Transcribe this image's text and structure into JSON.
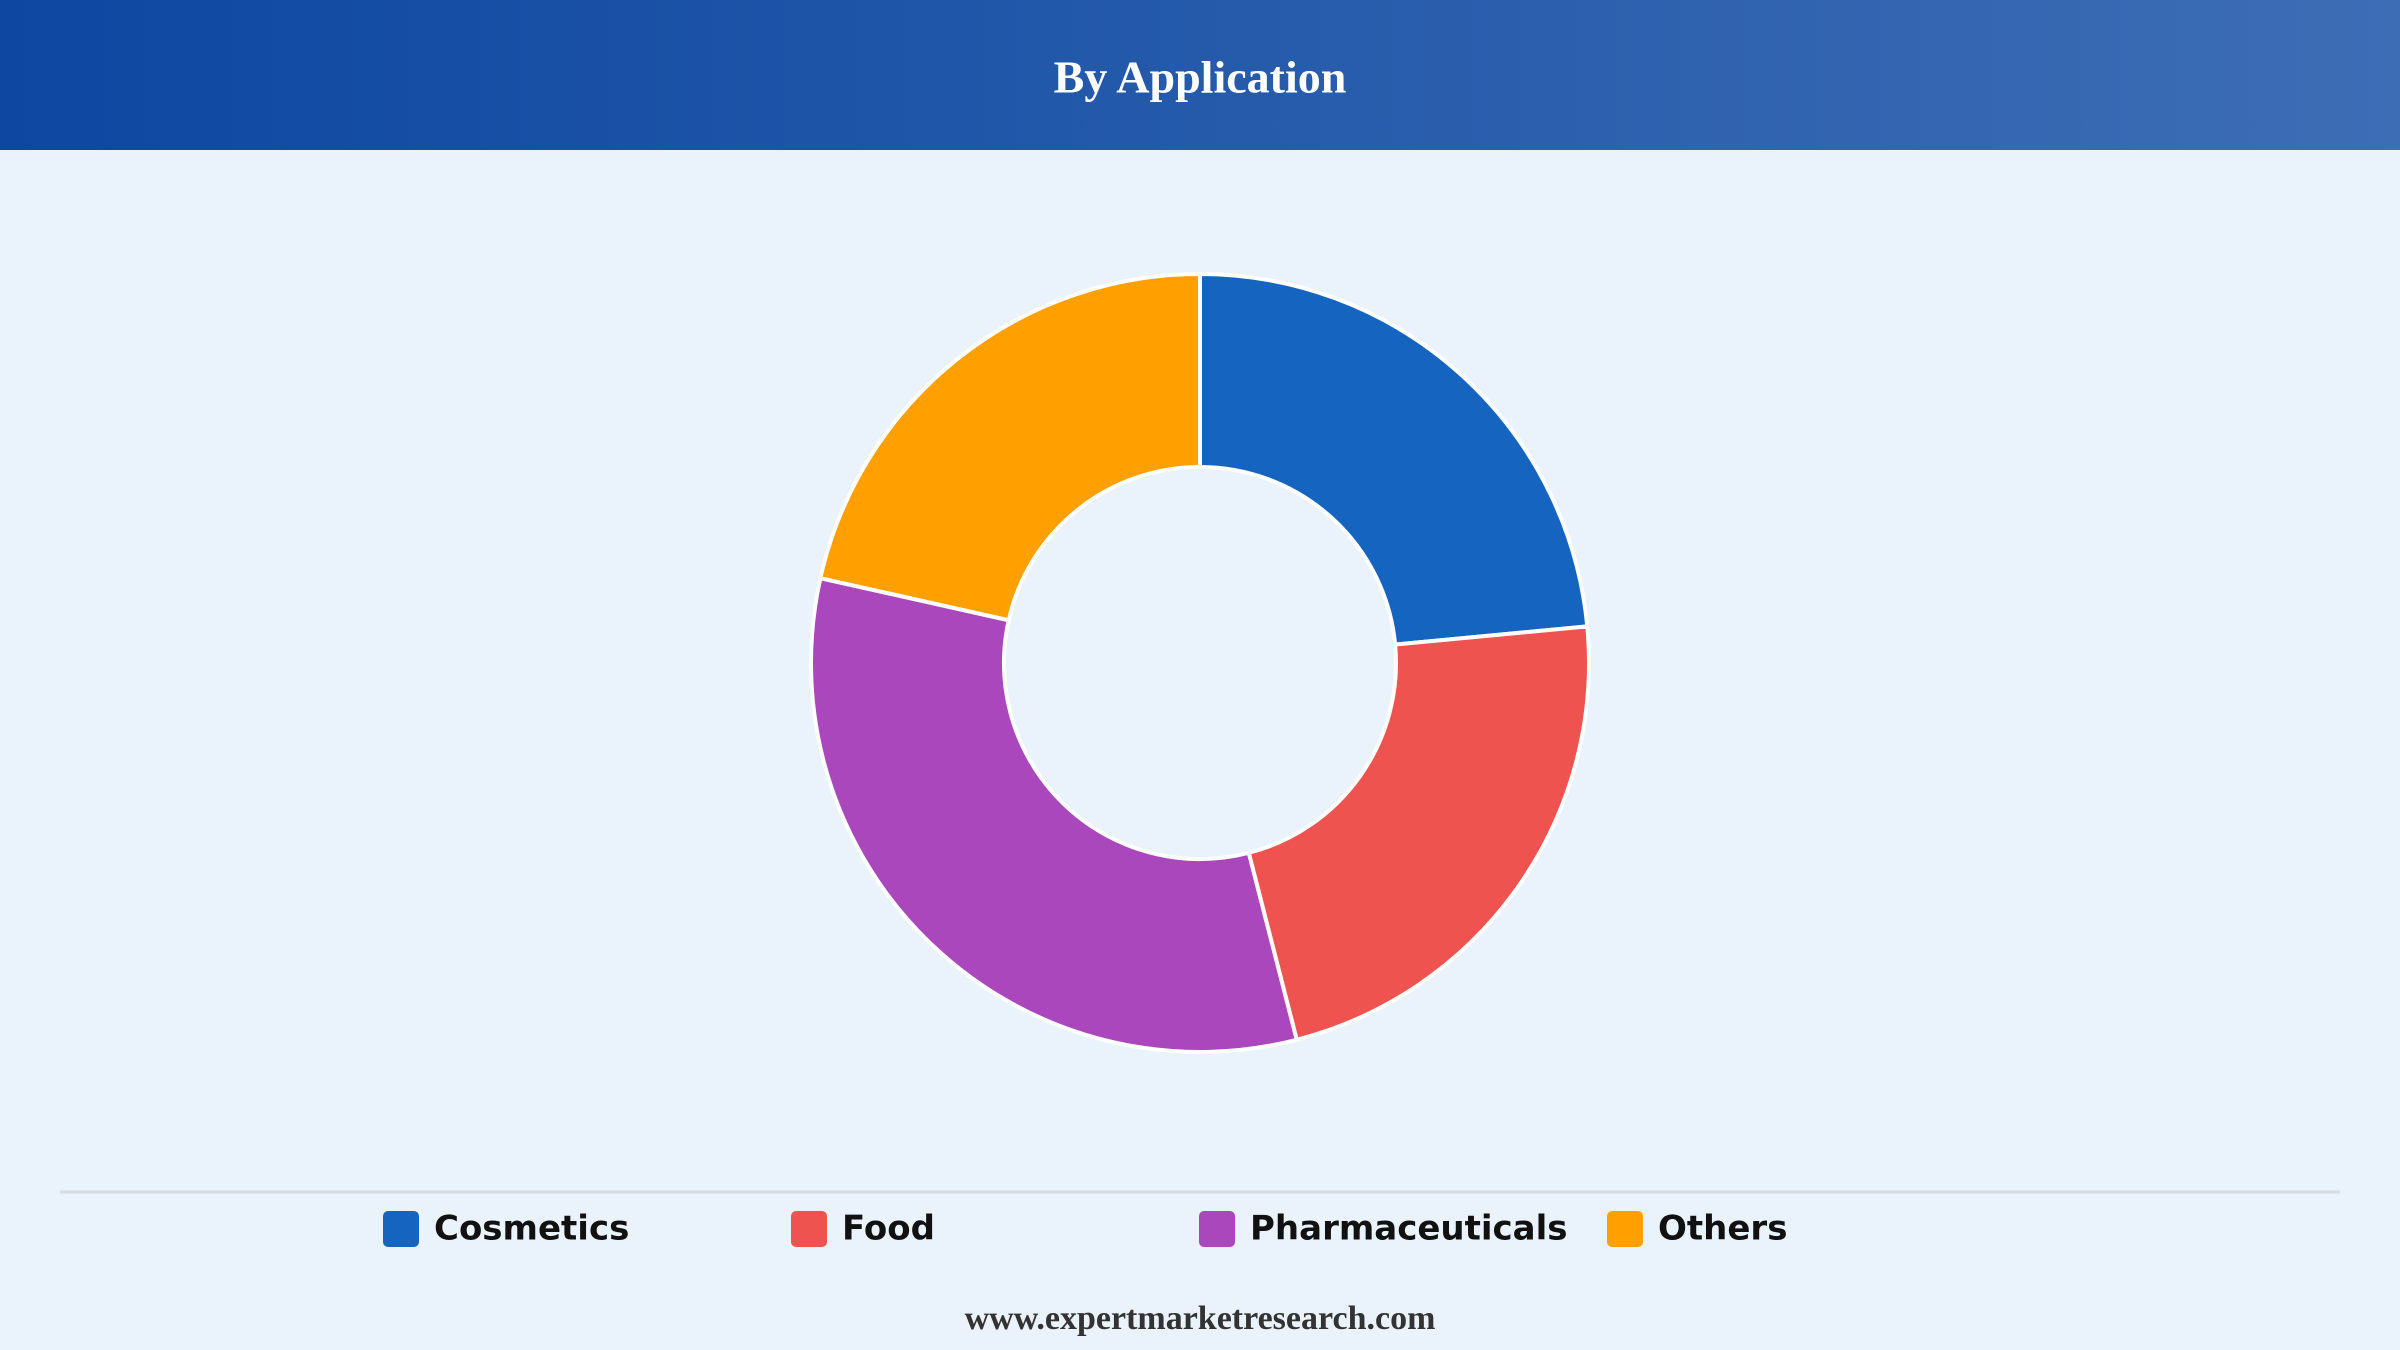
{
  "chart_data": {
    "type": "donut",
    "title": "By Application",
    "categories": [
      "Cosmetics",
      "Food",
      "Pharmaceuticals",
      "Others"
    ],
    "values": [
      23.5,
      22.5,
      32.5,
      21.5
    ],
    "colors": [
      "#1565c0",
      "#ef5350",
      "#ab47bc",
      "#ffa000"
    ]
  },
  "footer": "www.expertmarketresearch.com"
}
